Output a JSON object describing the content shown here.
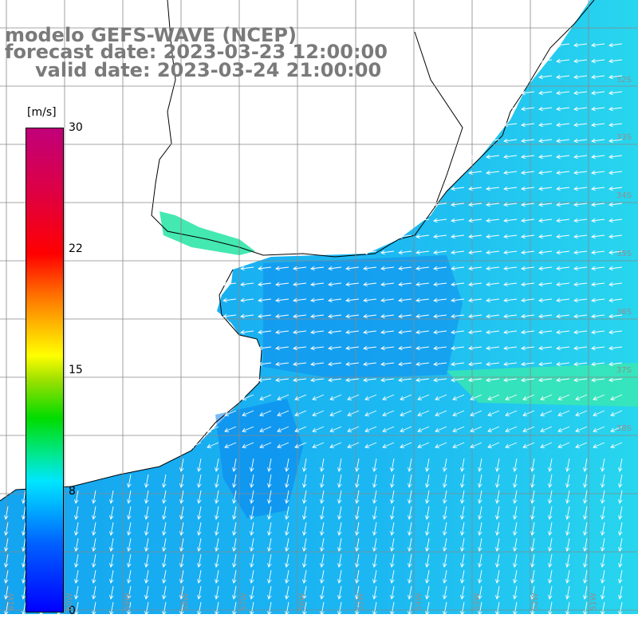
{
  "title": {
    "line1": "modelo GEFS-WAVE (NCEP)",
    "line2": "forecast date: 2023-03-23 12:00:00",
    "line3": "valid date: 2023-03-24 21:00:00"
  },
  "colorbar": {
    "unit": "[m/s]",
    "ticks": [
      "30",
      "22",
      "15",
      "8",
      "0"
    ],
    "range": [
      0,
      30
    ],
    "colors": [
      "#0000ff",
      "#00b4ff",
      "#00e6ff",
      "#00dc00",
      "#ffff00",
      "#ff6a00",
      "#ff0000",
      "#c0007a"
    ]
  },
  "grid": {
    "lat_labels": [
      "32S",
      "33S",
      "34S",
      "35S",
      "36S",
      "37S",
      "38S"
    ],
    "lon_labels": [
      "61W",
      "60W",
      "59W",
      "58W",
      "57W",
      "56W",
      "55W",
      "54W",
      "53W",
      "52W",
      "51W"
    ]
  },
  "field": {
    "variable": "wind speed and direction",
    "ocean_base_color": "#1fb4f2",
    "land_color": "#ffffff",
    "coast_color": "#000000",
    "arrow_color": "#ffffff"
  }
}
